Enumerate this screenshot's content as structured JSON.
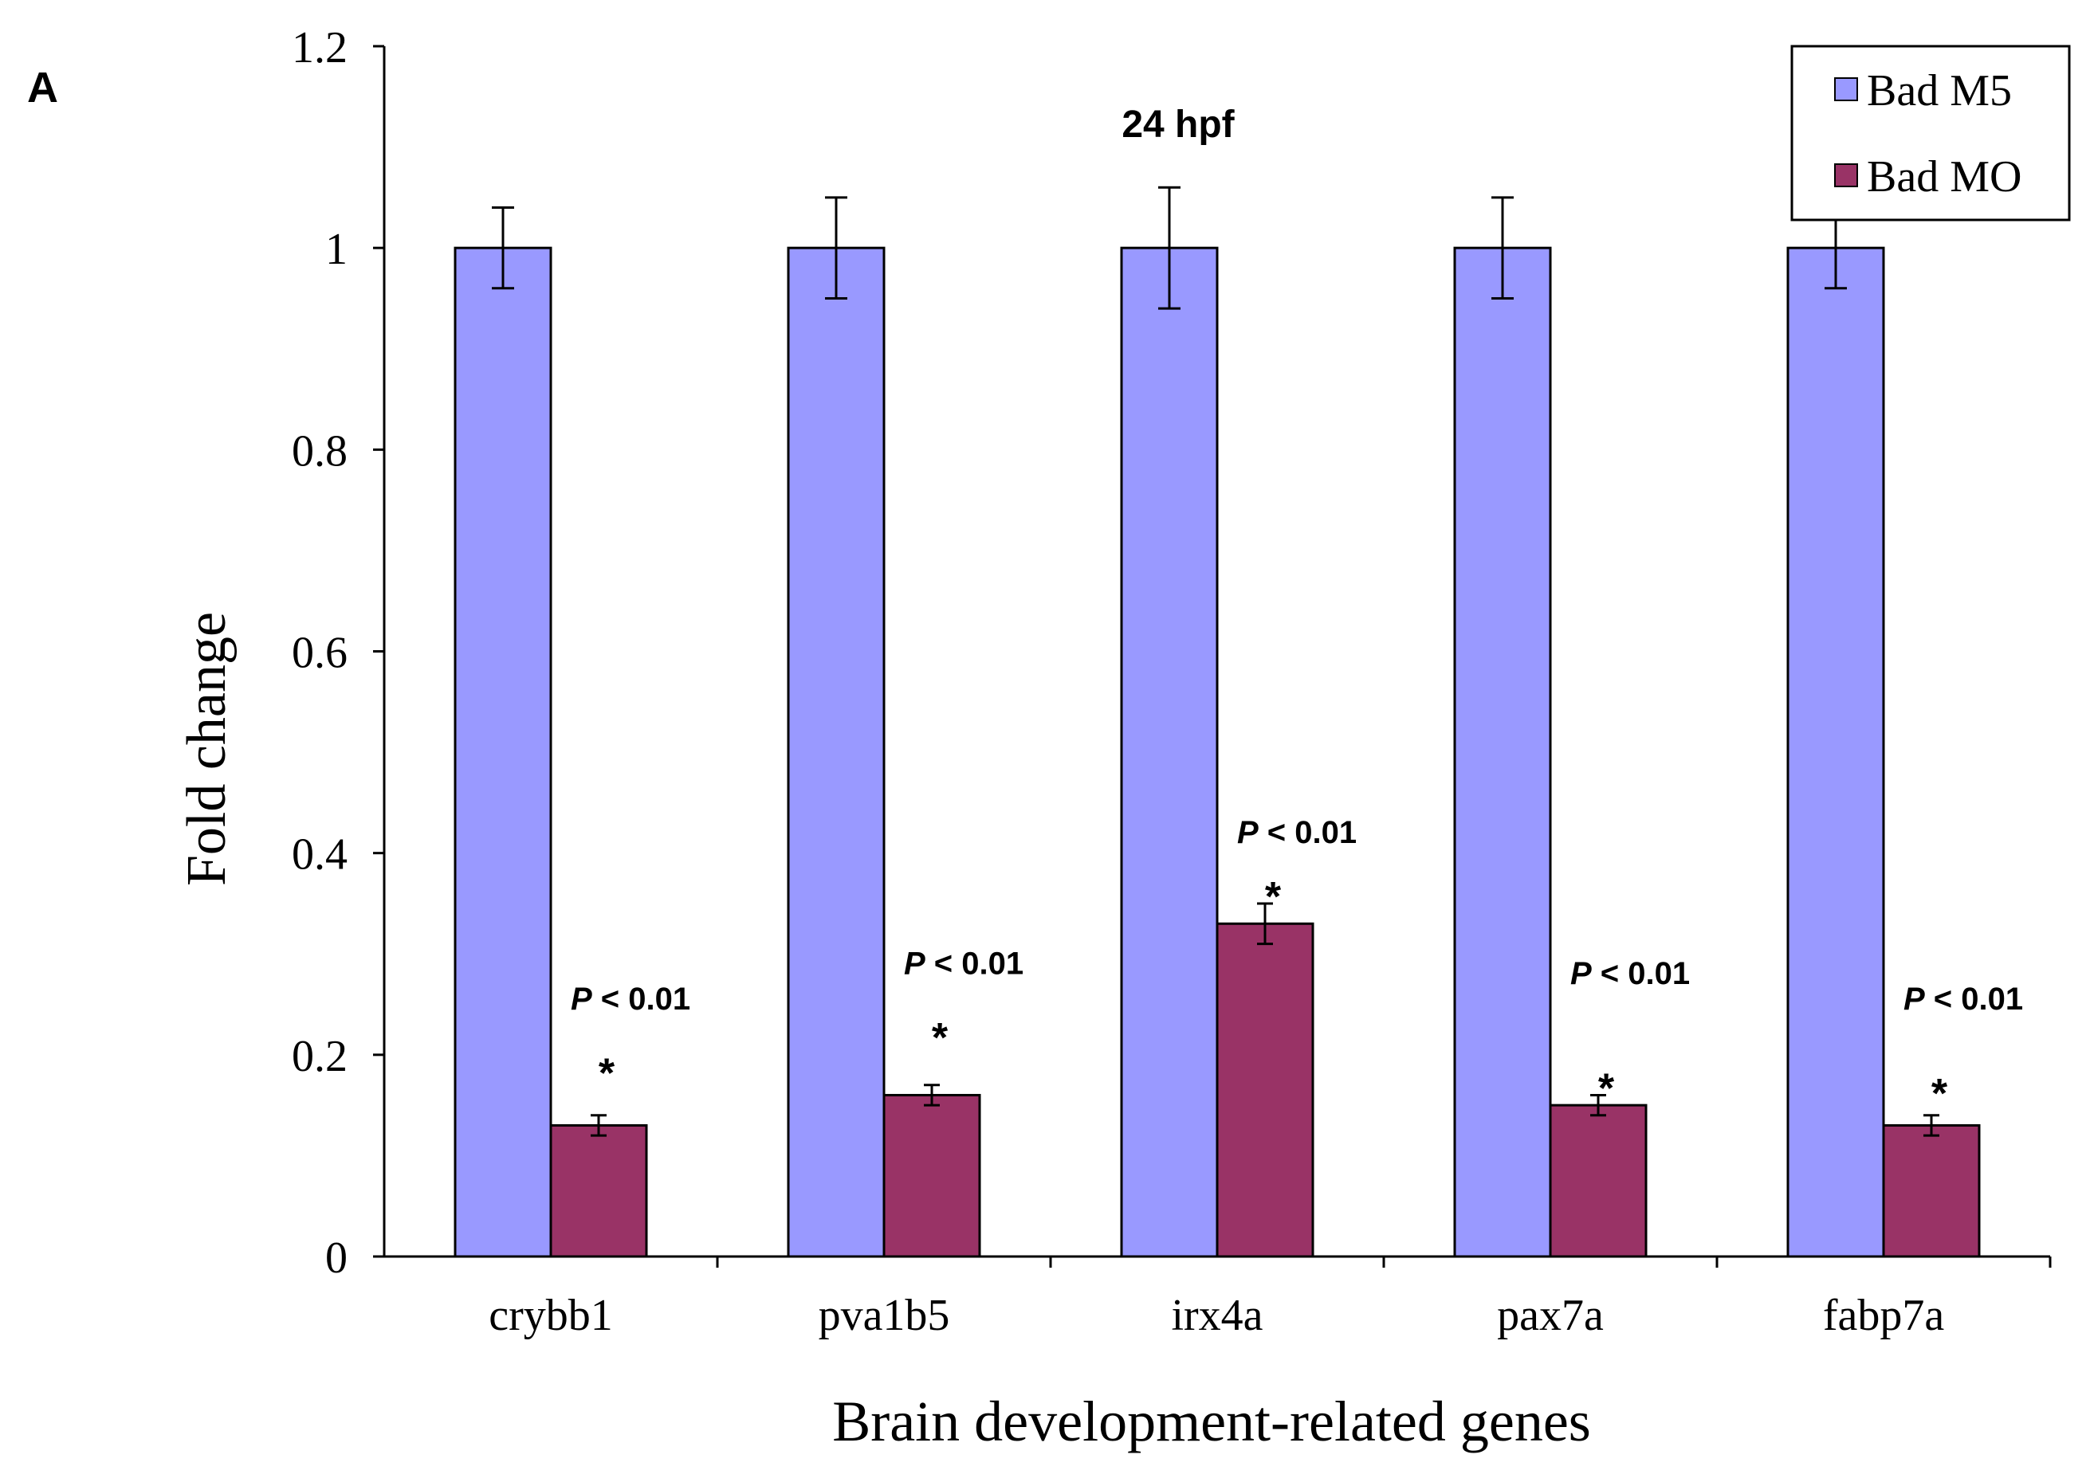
{
  "panel_label": "A",
  "chart_data": {
    "type": "bar",
    "title": "24 hpf",
    "xlabel": "Brain development-related genes",
    "ylabel": "Fold change",
    "ylim": [
      0,
      1.2
    ],
    "yticks": [
      0,
      0.2,
      0.4,
      0.6,
      0.8,
      1,
      1.2
    ],
    "ytick_labels": [
      "0",
      "0.2",
      "0.4",
      "0.6",
      "0.8",
      "1",
      "1.2"
    ],
    "categories": [
      "crybb1",
      "pva1b5",
      "irx4a",
      "pax7a",
      "fabp7a"
    ],
    "series": [
      {
        "name": "Bad M5",
        "color": "#9999FF",
        "values": [
          1,
          1,
          1,
          1,
          1
        ],
        "errors": [
          0.04,
          0.05,
          0.06,
          0.05,
          0.04
        ]
      },
      {
        "name": "Bad MO",
        "color": "#993366",
        "values": [
          0.13,
          0.16,
          0.33,
          0.15,
          0.13
        ],
        "errors": [
          0.01,
          0.01,
          0.02,
          0.01,
          0.01
        ]
      }
    ],
    "annotations": [
      {
        "category": "crybb1",
        "p_label": "P",
        "p_text": " < 0.01",
        "star": "*",
        "p_level": 0.245,
        "star_level": 0.19
      },
      {
        "category": "pva1b5",
        "p_label": "P",
        "p_text": " < 0.01",
        "star": "*",
        "p_level": 0.28,
        "star_level": 0.225
      },
      {
        "category": "irx4a",
        "p_label": "P",
        "p_text": " < 0.01",
        "star": "*",
        "p_level": 0.41,
        "star_level": 0.365
      },
      {
        "category": "pax7a",
        "p_label": "P",
        "p_text": " < 0.01",
        "star": "*",
        "p_level": 0.27,
        "star_level": 0.175
      },
      {
        "category": "fabp7a",
        "p_label": "P",
        "p_text": " < 0.01",
        "star": "*",
        "p_level": 0.245,
        "star_level": 0.17
      }
    ],
    "legend": {
      "position": "top-right",
      "entries": [
        "Bad M5",
        "Bad MO"
      ]
    }
  }
}
